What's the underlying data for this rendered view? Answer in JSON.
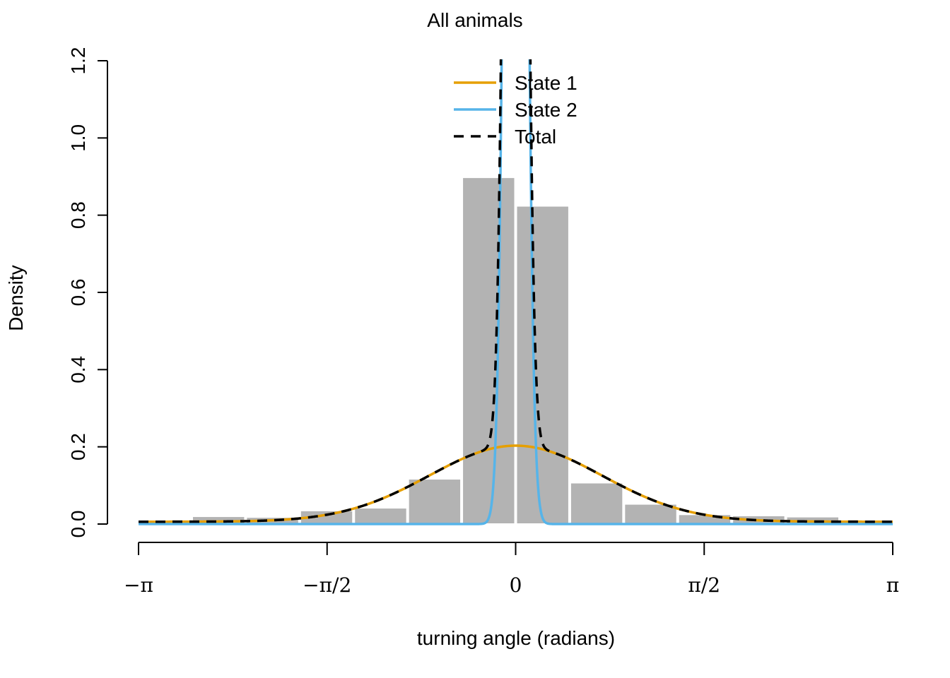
{
  "chart_data": {
    "type": "bar",
    "title": "All animals",
    "xlabel": "turning angle (radians)",
    "ylabel": "Density",
    "xlim": [
      -3.14159,
      3.14159
    ],
    "ylim": [
      0,
      1.2
    ],
    "y_ticks": [
      0.0,
      0.2,
      0.4,
      0.6,
      0.8,
      1.0,
      1.2
    ],
    "y_tick_labels": [
      "0.0",
      "0.2",
      "0.4",
      "0.6",
      "0.8",
      "1.0",
      "1.2"
    ],
    "x_ticks": [
      -3.14159,
      -1.5708,
      0,
      1.5708,
      3.14159
    ],
    "x_tick_labels": [
      "−π",
      "−π/2",
      "0",
      "π/2",
      "π"
    ],
    "histogram": {
      "bin_edges": [
        -2.7,
        -2.25,
        -1.8,
        -1.35,
        -0.9,
        -0.45,
        0,
        0.45,
        0.9,
        1.35,
        1.8,
        2.25,
        2.7
      ],
      "density": [
        0.02,
        0.018,
        0.035,
        0.042,
        0.117,
        0.898,
        0.824,
        0.107,
        0.052,
        0.025,
        0.022,
        0.019
      ],
      "color": "#b3b3b3"
    },
    "series": [
      {
        "name": "State 1",
        "color": "#e69f00",
        "dist": "wrapped-cauchy-like",
        "mu": 0,
        "peak": 0.203,
        "floor": 0.006,
        "style": "solid"
      },
      {
        "name": "State 2",
        "color": "#56b4e9",
        "dist": "von-mises-like",
        "mu": 0,
        "peak": 6.0,
        "style": "solid"
      },
      {
        "name": "Total",
        "color": "#000000",
        "style": "dashed"
      }
    ],
    "legend": {
      "placement": "top-center",
      "entries": [
        "State 1",
        "State 2",
        "Total"
      ]
    }
  }
}
